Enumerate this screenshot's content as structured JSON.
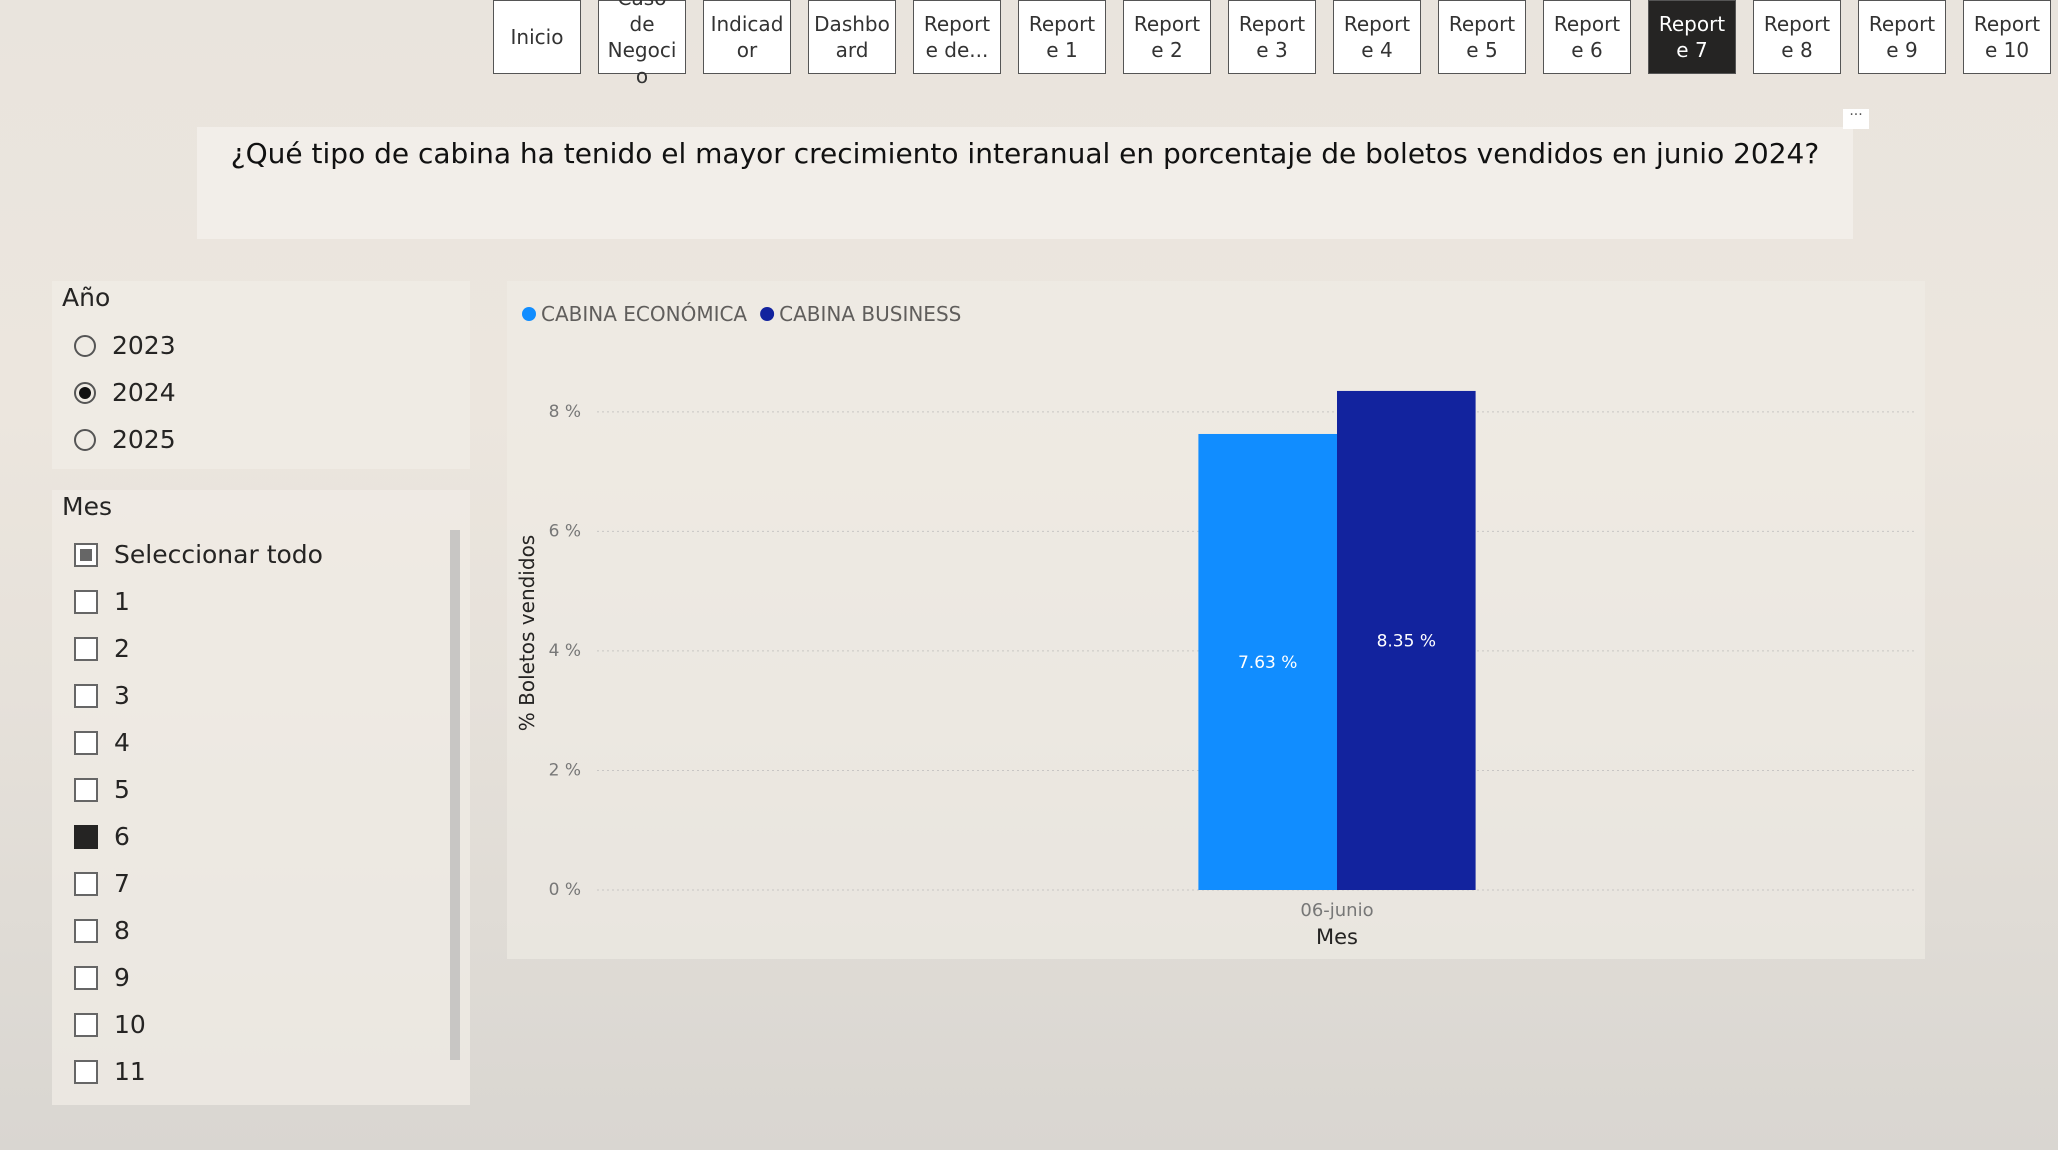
{
  "nav": {
    "tabs": [
      "Inicio",
      "Caso de Negocio",
      "Indicador",
      "Dashboard",
      "Reporte de...",
      "Reporte 1",
      "Reporte 2",
      "Reporte 3",
      "Reporte 4",
      "Reporte 5",
      "Reporte 6",
      "Reporte 7",
      "Reporte 8",
      "Reporte 9",
      "Reporte 10"
    ],
    "active": "Reporte 7"
  },
  "question": "¿Qué tipo de cabina ha tenido el mayor crecimiento interanual en porcentaje de boletos vendidos en junio 2024?",
  "year_slicer": {
    "title": "Año",
    "options": [
      "2023",
      "2024",
      "2025"
    ],
    "selected": "2024"
  },
  "month_slicer": {
    "title": "Mes",
    "select_all": "Seleccionar todo",
    "options": [
      "1",
      "2",
      "3",
      "4",
      "5",
      "6",
      "7",
      "8",
      "9",
      "10",
      "11"
    ],
    "selected": [
      "6"
    ]
  },
  "chart_data": {
    "type": "bar",
    "xlabel": "Mes",
    "ylabel": "% Boletos vendidos",
    "categories": [
      "06-junio"
    ],
    "series": [
      {
        "name": "CABINA ECONÓMICA",
        "color": "#118dff",
        "values": [
          7.63
        ],
        "value_labels": [
          "7.63 %"
        ]
      },
      {
        "name": "CABINA BUSINESS",
        "color": "#12239e",
        "values": [
          8.35
        ],
        "value_labels": [
          "8.35 %"
        ]
      }
    ],
    "ylim": [
      0,
      8.6
    ],
    "yticks": [
      {
        "value": 0,
        "label": "0 %"
      },
      {
        "value": 2,
        "label": "2 %"
      },
      {
        "value": 4,
        "label": "4 %"
      },
      {
        "value": 6,
        "label": "6 %"
      },
      {
        "value": 8,
        "label": "8 %"
      }
    ],
    "grid": true,
    "legend": "top-left"
  }
}
